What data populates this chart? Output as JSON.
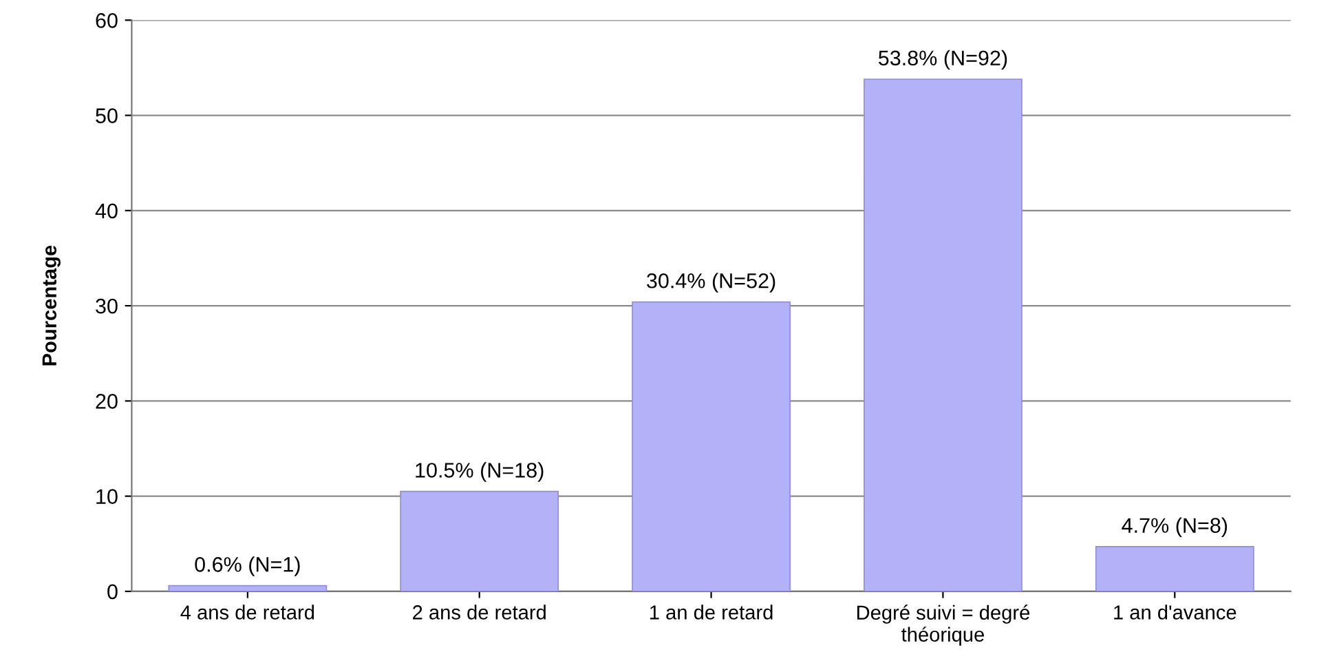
{
  "chart_data": {
    "type": "bar",
    "ylabel": "Pourcentage",
    "categories": [
      "4 ans de retard",
      "2 ans de retard",
      "1 an de retard",
      "Degré suivi = degré\nthéorique",
      "1 an d'avance"
    ],
    "values": [
      0.6,
      10.5,
      30.4,
      53.8,
      4.7
    ],
    "value_labels": [
      "0.6% (N=1)",
      "10.5% (N=18)",
      "30.4% (N=52)",
      "53.8% (N=92)",
      "4.7% (N=8)"
    ],
    "color": "#b3b1f7",
    "ylim": [
      0,
      60
    ],
    "yticks": [
      0,
      10,
      20,
      30,
      40,
      50,
      60
    ],
    "grid": "y"
  }
}
